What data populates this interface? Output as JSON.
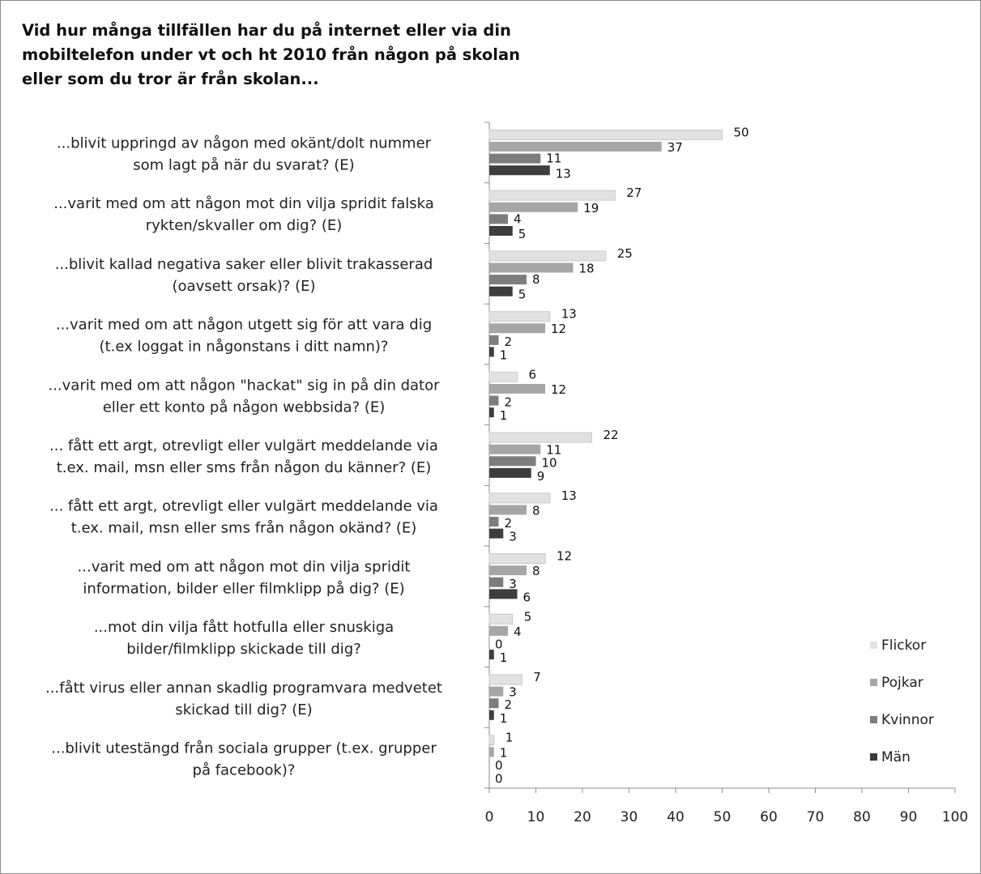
{
  "chart_data": {
    "type": "bar",
    "orientation": "horizontal",
    "title": [
      "Vid hur många tillfällen har du på internet eller via din",
      "mobiltelefon under vt och ht 2010 från någon på skolan",
      "eller som du tror är från skolan..."
    ],
    "categories": [
      [
        "...blivit uppringd av någon med okänt/dolt nummer",
        "som lagt på när du svarat? (E)"
      ],
      [
        "...varit med om att någon mot din vilja spridit falska",
        "rykten/skvaller om dig? (E)"
      ],
      [
        "...blivit kallad negativa saker eller blivit trakasserad",
        "(oavsett orsak)? (E)"
      ],
      [
        "...varit med om att någon utgett sig för att vara dig",
        "(t.ex loggat in någonstans i ditt namn)?"
      ],
      [
        "...varit med om att någon \"hackat\" sig in på din dator",
        "eller ett konto på någon webbsida? (E)"
      ],
      [
        "... fått ett argt, otrevligt eller vulgärt meddelande via",
        "t.ex. mail, msn eller sms från någon du känner? (E)"
      ],
      [
        "... fått ett argt, otrevligt eller vulgärt meddelande via",
        "t.ex. mail, msn eller sms från någon okänd? (E)"
      ],
      [
        "...varit med om att någon mot din vilja spridit",
        "information, bilder eller filmklipp på dig? (E)"
      ],
      [
        "...mot din vilja fått hotfulla eller snuskiga",
        "bilder/filmklipp skickade till dig?"
      ],
      [
        "...fått virus eller annan skadlig programvara medvetet",
        "skickad till dig? (E)"
      ],
      [
        "...blivit utestängd från sociala grupper (t.ex. grupper",
        "på facebook)?"
      ]
    ],
    "series": [
      {
        "name": "Flickor",
        "color": "#e2e2e2",
        "values": [
          50,
          27,
          25,
          13,
          6,
          22,
          13,
          12,
          5,
          7,
          1
        ]
      },
      {
        "name": "Pojkar",
        "color": "#a6a6a6",
        "values": [
          37,
          19,
          18,
          12,
          12,
          11,
          8,
          8,
          4,
          3,
          1
        ]
      },
      {
        "name": "Kvinnor",
        "color": "#7d7d7d",
        "values": [
          11,
          4,
          8,
          2,
          2,
          10,
          2,
          3,
          0,
          2,
          0
        ]
      },
      {
        "name": "Män",
        "color": "#3d3d3d",
        "values": [
          13,
          5,
          5,
          1,
          1,
          9,
          3,
          6,
          1,
          1,
          0
        ]
      }
    ],
    "xlim": [
      0,
      100
    ],
    "xticks": [
      0,
      10,
      20,
      30,
      40,
      50,
      60,
      70,
      80,
      90,
      100
    ],
    "grid": false,
    "legend": "right"
  }
}
